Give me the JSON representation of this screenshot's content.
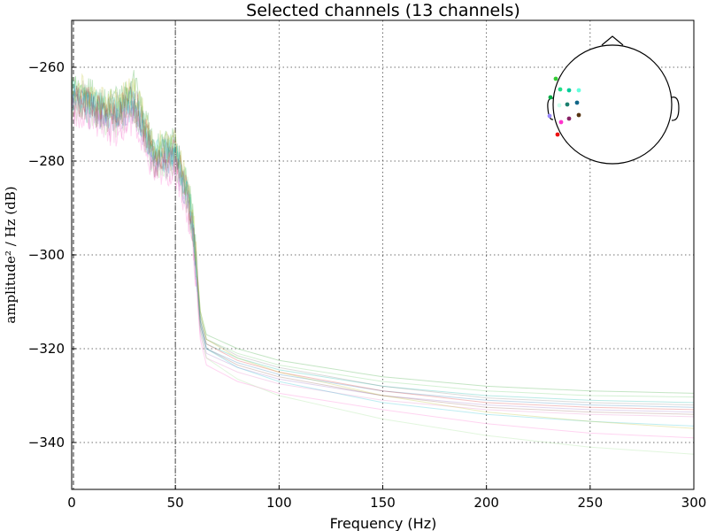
{
  "chart_data": {
    "type": "line",
    "title": "Selected channels (13 channels)",
    "xlabel": "Frequency (Hz)",
    "ylabel": "amplitude² / Hz (dB)",
    "xlim": [
      0,
      300
    ],
    "ylim": [
      -350,
      -250
    ],
    "x_ticks": [
      0,
      50,
      100,
      150,
      200,
      250,
      300
    ],
    "y_ticks": [
      -260,
      -280,
      -300,
      -320,
      -340
    ],
    "x_tick_labels": [
      "0",
      "50",
      "100",
      "150",
      "200",
      "250",
      "300"
    ],
    "y_tick_labels": [
      "−260",
      "−280",
      "−300",
      "−320",
      "−340"
    ],
    "grid": true,
    "vlines": [
      0,
      50
    ],
    "series": [
      {
        "color": "#2ca02c",
        "x": [
          0,
          10,
          20,
          30,
          40,
          50,
          55,
          58,
          60,
          62,
          65,
          80,
          100,
          150,
          200,
          250,
          300
        ],
        "y": [
          -263,
          -266,
          -268,
          -264,
          -277,
          -276,
          -284,
          -290,
          -300,
          -312,
          -317,
          -320,
          -322.5,
          -326,
          -328,
          -329,
          -329.5
        ]
      },
      {
        "color": "#66cc66",
        "x": [
          0,
          10,
          20,
          30,
          40,
          50,
          55,
          58,
          60,
          62,
          65,
          80,
          100,
          150,
          200,
          250,
          300
        ],
        "y": [
          -265,
          -267,
          -269,
          -266,
          -278,
          -277,
          -285,
          -291,
          -301,
          -313,
          -318,
          -321,
          -323.5,
          -327,
          -329,
          -330,
          -330.3
        ]
      },
      {
        "color": "#00b3a0",
        "x": [
          0,
          10,
          20,
          30,
          40,
          50,
          55,
          58,
          60,
          62,
          65,
          80,
          100,
          150,
          200,
          250,
          300
        ],
        "y": [
          -266,
          -268,
          -270,
          -267,
          -279,
          -278,
          -286,
          -292,
          -302,
          -314,
          -319,
          -322,
          -324.5,
          -328,
          -330,
          -331,
          -331.5
        ]
      },
      {
        "color": "#1f77b4",
        "x": [
          0,
          10,
          20,
          30,
          40,
          50,
          55,
          58,
          60,
          62,
          65,
          80,
          100,
          150,
          200,
          250,
          300
        ],
        "y": [
          -267,
          -269,
          -271,
          -268,
          -280,
          -279,
          -287,
          -293,
          -303,
          -315,
          -320,
          -323,
          -325.5,
          -329,
          -331,
          -332,
          -332.5
        ]
      },
      {
        "color": "#9467bd",
        "x": [
          0,
          10,
          20,
          30,
          40,
          50,
          55,
          58,
          60,
          62,
          65,
          80,
          100,
          150,
          200,
          250,
          300
        ],
        "y": [
          -268,
          -270,
          -272,
          -269,
          -281,
          -280,
          -288,
          -294,
          -304,
          -316,
          -321,
          -324,
          -326.5,
          -330,
          -332,
          -333,
          -333.5
        ]
      },
      {
        "color": "#e377c2",
        "x": [
          0,
          10,
          20,
          30,
          40,
          50,
          55,
          58,
          60,
          62,
          65,
          80,
          100,
          150,
          200,
          250,
          300
        ],
        "y": [
          -268,
          -270,
          -273,
          -270,
          -281,
          -281,
          -289,
          -295,
          -305,
          -317,
          -322,
          -325,
          -327.5,
          -331,
          -333,
          -334,
          -334.5
        ]
      },
      {
        "color": "#ff66cc",
        "x": [
          0,
          10,
          20,
          30,
          40,
          50,
          55,
          58,
          60,
          62,
          65,
          80,
          100,
          150,
          200,
          250,
          300
        ],
        "y": [
          -269,
          -271,
          -274,
          -271,
          -282,
          -282,
          -290,
          -296,
          -306,
          -318,
          -323.5,
          -327,
          -329.5,
          -333,
          -336,
          -338,
          -339
        ]
      },
      {
        "color": "#d62728",
        "x": [
          0,
          10,
          20,
          30,
          40,
          50,
          55,
          58,
          60,
          62,
          65,
          80,
          100,
          150,
          200,
          250,
          300
        ],
        "y": [
          -266,
          -268,
          -270,
          -267,
          -279,
          -278,
          -286,
          -292,
          -302,
          -314,
          -319,
          -322.5,
          -325,
          -329,
          -331.5,
          -332.5,
          -333
        ]
      },
      {
        "color": "#8c564b",
        "x": [
          0,
          10,
          20,
          30,
          40,
          50,
          55,
          58,
          60,
          62,
          65,
          80,
          100,
          150,
          200,
          250,
          300
        ],
        "y": [
          -267,
          -269,
          -271,
          -268,
          -280,
          -279,
          -287,
          -293,
          -303,
          -315,
          -320,
          -323.5,
          -326,
          -330,
          -332.5,
          -333.5,
          -334
        ]
      },
      {
        "color": "#7f7f7f",
        "x": [
          0,
          10,
          20,
          30,
          40,
          50,
          55,
          58,
          60,
          62,
          65,
          80,
          100,
          150,
          200,
          250,
          300
        ],
        "y": [
          -265,
          -267,
          -269,
          -266,
          -278,
          -277,
          -285,
          -291,
          -301,
          -313,
          -318,
          -321.5,
          -324,
          -328,
          -330.5,
          -331.5,
          -332
        ]
      },
      {
        "color": "#17becf",
        "x": [
          0,
          10,
          20,
          30,
          40,
          50,
          55,
          58,
          60,
          62,
          65,
          80,
          100,
          150,
          200,
          250,
          300
        ],
        "y": [
          -266,
          -268,
          -270,
          -267,
          -279,
          -278,
          -286,
          -292,
          -302,
          -314,
          -320,
          -324,
          -327,
          -331.5,
          -334,
          -335.5,
          -336.5
        ]
      },
      {
        "color": "#bcbd22",
        "x": [
          0,
          10,
          20,
          30,
          40,
          50,
          55,
          58,
          60,
          62,
          65,
          80,
          100,
          150,
          200,
          250,
          300
        ],
        "y": [
          -264,
          -266,
          -268,
          -265,
          -277,
          -276,
          -284,
          -290,
          -300,
          -312,
          -318,
          -322,
          -325,
          -330,
          -333.5,
          -335.5,
          -337
        ]
      },
      {
        "color": "#98df8a",
        "x": [
          0,
          10,
          20,
          30,
          40,
          50,
          55,
          58,
          60,
          62,
          65,
          80,
          100,
          150,
          200,
          250,
          300
        ],
        "y": [
          -268,
          -270,
          -272,
          -269,
          -281,
          -280,
          -288,
          -294,
          -304,
          -316,
          -322,
          -326.5,
          -330,
          -335,
          -338.5,
          -341,
          -342.5
        ]
      }
    ],
    "sensor_inset": {
      "sensors": [
        {
          "color": "#33cc33"
        },
        {
          "color": "#00aa44"
        },
        {
          "color": "#22dd88"
        },
        {
          "color": "#00cc99"
        },
        {
          "color": "#66ffdd"
        },
        {
          "color": "#ccffee"
        },
        {
          "color": "#1a7f6e"
        },
        {
          "color": "#116688"
        },
        {
          "color": "#9988ff"
        },
        {
          "color": "#ff33cc"
        },
        {
          "color": "#882266"
        },
        {
          "color": "#553311"
        },
        {
          "color": "#ee1111"
        }
      ]
    }
  }
}
